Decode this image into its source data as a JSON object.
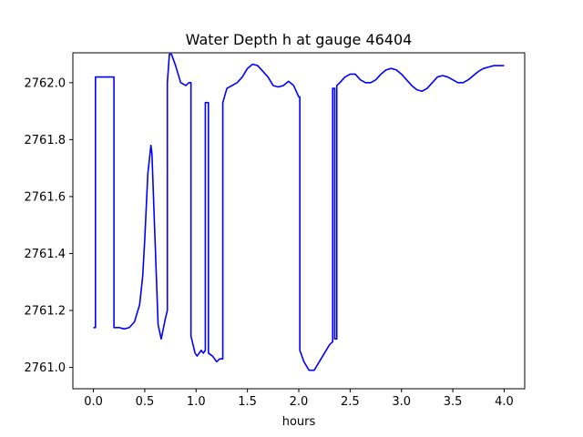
{
  "chart_data": {
    "type": "line",
    "title": "Water Depth h at gauge 46404",
    "xlabel": "hours",
    "ylabel": "",
    "xlim": [
      -0.2,
      4.2
    ],
    "ylim": [
      2760.925,
      2762.105
    ],
    "x_ticks": [
      0.0,
      0.5,
      1.0,
      1.5,
      2.0,
      2.5,
      3.0,
      3.5,
      4.0
    ],
    "x_tick_labels": [
      "0.0",
      "0.5",
      "1.0",
      "1.5",
      "2.0",
      "2.5",
      "3.0",
      "3.5",
      "4.0"
    ],
    "y_ticks": [
      2761.0,
      2761.2,
      2761.4,
      2761.6,
      2761.8,
      2762.0
    ],
    "y_tick_labels": [
      "2761.0",
      "2761.2",
      "2761.4",
      "2761.6",
      "2761.8",
      "2762.0"
    ],
    "grid": false,
    "colors": {
      "line": "#0000ff",
      "axes": "#000000",
      "background": "#ffffff"
    },
    "series": [
      {
        "name": "",
        "x": [
          0.0,
          0.02,
          0.02,
          0.2,
          0.2,
          0.25,
          0.3,
          0.35,
          0.4,
          0.45,
          0.48,
          0.5,
          0.53,
          0.56,
          0.57,
          0.6,
          0.63,
          0.66,
          0.7,
          0.72,
          0.72,
          0.74,
          0.76,
          0.8,
          0.85,
          0.9,
          0.93,
          0.95,
          0.95,
          0.97,
          0.99,
          1.01,
          1.03,
          1.05,
          1.07,
          1.09,
          1.09,
          1.12,
          1.12,
          1.16,
          1.2,
          1.23,
          1.26,
          1.26,
          1.3,
          1.35,
          1.4,
          1.45,
          1.5,
          1.55,
          1.6,
          1.65,
          1.7,
          1.75,
          1.8,
          1.85,
          1.9,
          1.95,
          2.0,
          2.01,
          2.01,
          2.05,
          2.1,
          2.15,
          2.2,
          2.25,
          2.3,
          2.33,
          2.33,
          2.35,
          2.35,
          2.37,
          2.37,
          2.4,
          2.45,
          2.5,
          2.55,
          2.6,
          2.65,
          2.7,
          2.75,
          2.8,
          2.85,
          2.9,
          2.95,
          3.0,
          3.05,
          3.1,
          3.15,
          3.2,
          3.25,
          3.3,
          3.35,
          3.4,
          3.45,
          3.5,
          3.55,
          3.6,
          3.65,
          3.7,
          3.75,
          3.8,
          3.85,
          3.9,
          3.95,
          4.0
        ],
        "y": [
          2761.14,
          2761.14,
          2762.02,
          2762.02,
          2761.14,
          2761.14,
          2761.135,
          2761.14,
          2761.16,
          2761.22,
          2761.32,
          2761.45,
          2761.68,
          2761.78,
          2761.75,
          2761.45,
          2761.15,
          2761.1,
          2761.17,
          2761.2,
          2762.0,
          2762.1,
          2762.1,
          2762.06,
          2762.0,
          2761.99,
          2762.0,
          2762.0,
          2761.11,
          2761.08,
          2761.05,
          2761.04,
          2761.05,
          2761.06,
          2761.05,
          2761.06,
          2761.93,
          2761.93,
          2761.05,
          2761.04,
          2761.02,
          2761.03,
          2761.03,
          2761.93,
          2761.98,
          2761.99,
          2762.0,
          2762.02,
          2762.05,
          2762.065,
          2762.06,
          2762.04,
          2762.02,
          2761.99,
          2761.985,
          2761.99,
          2762.005,
          2761.99,
          2761.95,
          2761.95,
          2761.06,
          2761.02,
          2760.99,
          2760.99,
          2761.02,
          2761.05,
          2761.08,
          2761.09,
          2761.98,
          2761.98,
          2761.1,
          2761.1,
          2761.99,
          2762.0,
          2762.02,
          2762.03,
          2762.03,
          2762.01,
          2762.0,
          2762.0,
          2762.01,
          2762.03,
          2762.045,
          2762.05,
          2762.045,
          2762.03,
          2762.01,
          2761.99,
          2761.975,
          2761.97,
          2761.98,
          2762.0,
          2762.02,
          2762.025,
          2762.02,
          2762.01,
          2762.0,
          2762.0,
          2762.01,
          2762.025,
          2762.04,
          2762.05,
          2762.055,
          2762.06,
          2762.06,
          2762.06
        ]
      }
    ]
  }
}
